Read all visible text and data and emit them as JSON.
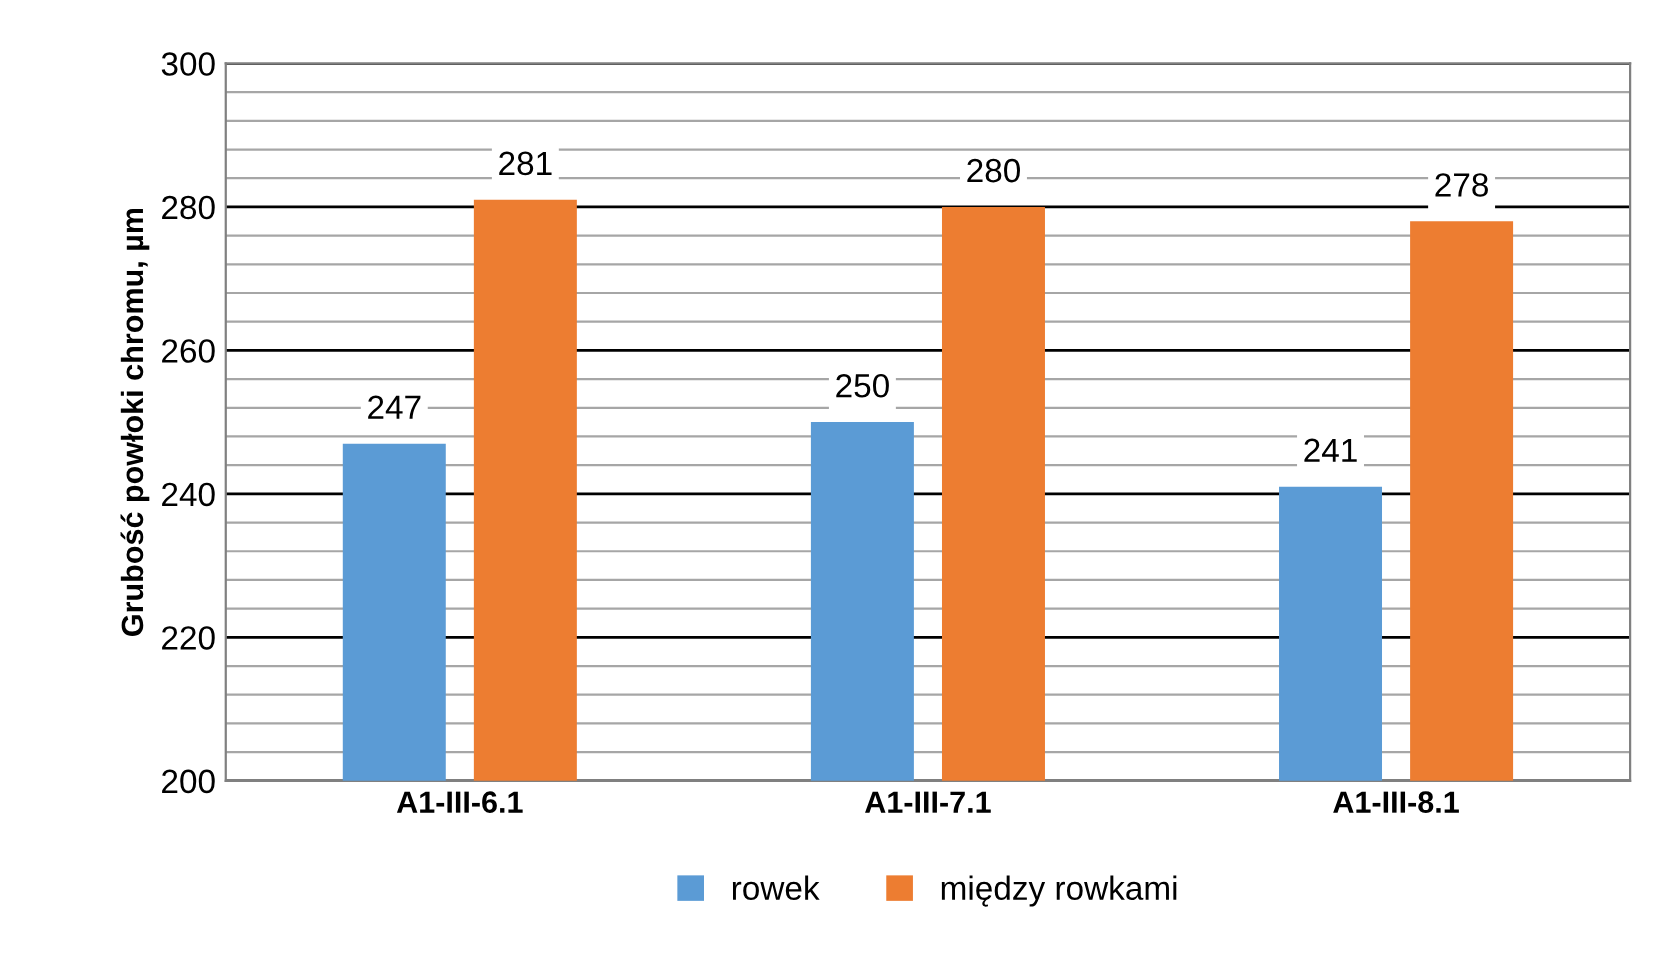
{
  "chart_data": {
    "type": "bar",
    "ylabel": "Grubość powłoki chromu, µm",
    "categories": [
      "A1-III-6.1",
      "A1-III-7.1",
      "A1-III-8.1"
    ],
    "series": [
      {
        "name": "rowek",
        "color": "#5b9bd5",
        "values": [
          247,
          250,
          241
        ]
      },
      {
        "name": "między rowkami",
        "color": "#ed7d31",
        "values": [
          281,
          280,
          278
        ]
      }
    ],
    "ylim": [
      200,
      300
    ],
    "yticks": [
      200,
      {
        "value": 204,
        "label": null
      },
      {
        "value": 208,
        "label": null
      },
      {
        "value": 212,
        "label": null
      },
      {
        "value": 216,
        "label": null
      },
      220,
      {
        "value": 224,
        "label": null
      },
      {
        "value": 228,
        "label": null
      },
      {
        "value": 232,
        "label": null
      },
      {
        "value": 236,
        "label": null
      },
      240,
      {
        "value": 244,
        "label": null
      },
      {
        "value": 248,
        "label": null
      },
      {
        "value": 252,
        "label": null
      },
      {
        "value": 256,
        "label": null
      },
      260,
      {
        "value": 264,
        "label": null
      },
      {
        "value": 268,
        "label": null
      },
      {
        "value": 272,
        "label": null
      },
      {
        "value": 276,
        "label": null
      },
      280,
      {
        "value": 284,
        "label": null
      },
      {
        "value": 288,
        "label": null
      },
      {
        "value": 292,
        "label": null
      },
      {
        "value": 296,
        "label": null
      },
      300
    ],
    "grid": "y",
    "data_labels": true,
    "legend": "bottom"
  }
}
